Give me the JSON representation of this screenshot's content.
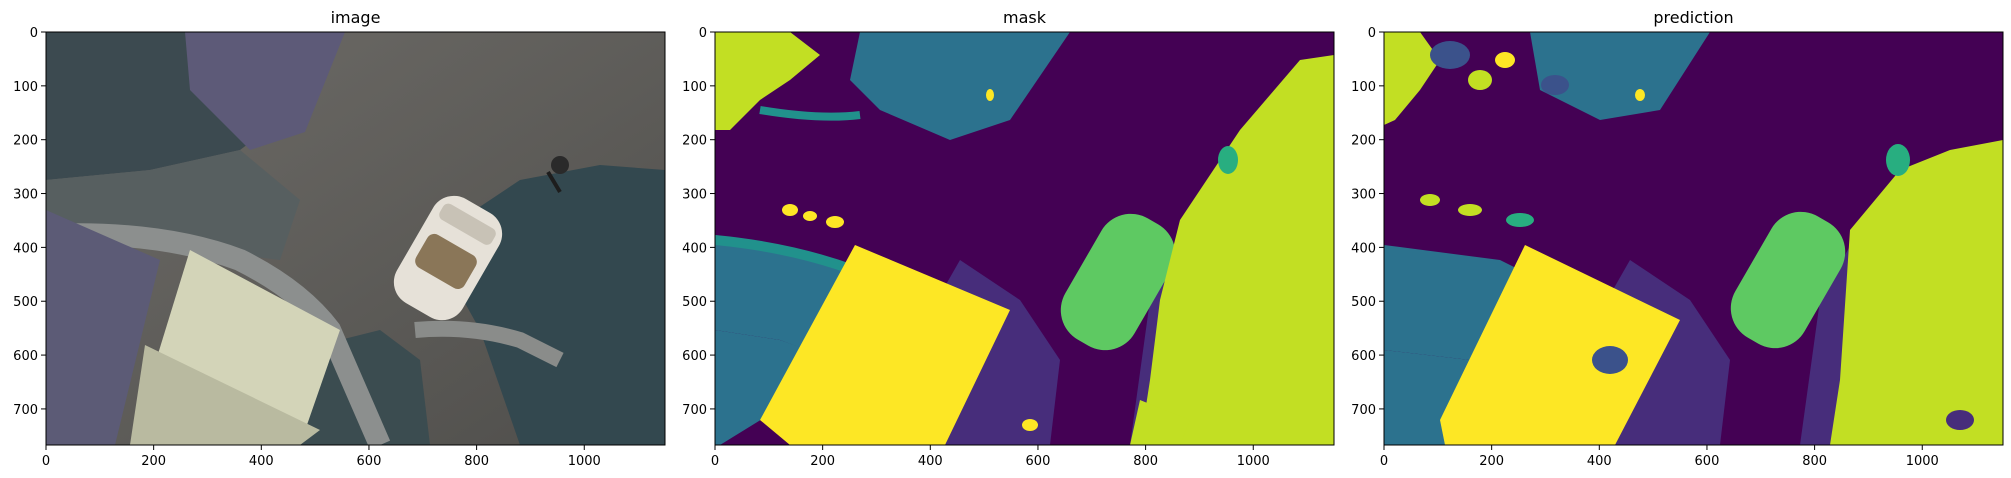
{
  "figure": {
    "panels": [
      {
        "id": "image",
        "title": "image",
        "xticks": [
          "0",
          "200",
          "400",
          "600",
          "800",
          "1000"
        ],
        "yticks": [
          "0",
          "100",
          "200",
          "300",
          "400",
          "500",
          "600",
          "700"
        ]
      },
      {
        "id": "mask",
        "title": "mask",
        "xticks": [
          "0",
          "200",
          "400",
          "600",
          "800",
          "1000"
        ],
        "yticks": [
          "0",
          "100",
          "200",
          "300",
          "400",
          "500",
          "600",
          "700"
        ]
      },
      {
        "id": "prediction",
        "title": "prediction",
        "xticks": [
          "0",
          "200",
          "400",
          "600",
          "800",
          "1000"
        ],
        "yticks": [
          "0",
          "100",
          "200",
          "300",
          "400",
          "500",
          "600",
          "700"
        ]
      }
    ],
    "axis": {
      "xlim": [
        0,
        1150
      ],
      "ylim": [
        0,
        767
      ],
      "xtick_values": [
        0,
        200,
        400,
        600,
        800,
        1000
      ],
      "ytick_values": [
        0,
        100,
        200,
        300,
        400,
        500,
        600,
        700
      ]
    },
    "palette": {
      "class0": "#440154",
      "class1": "#472d7b",
      "class2": "#3b528b",
      "class3": "#2c728e",
      "class4": "#21918c",
      "class5": "#28ae80",
      "class6": "#5ec962",
      "class7": "#addc30",
      "class8": "#c2df23",
      "class9": "#fde725"
    }
  }
}
